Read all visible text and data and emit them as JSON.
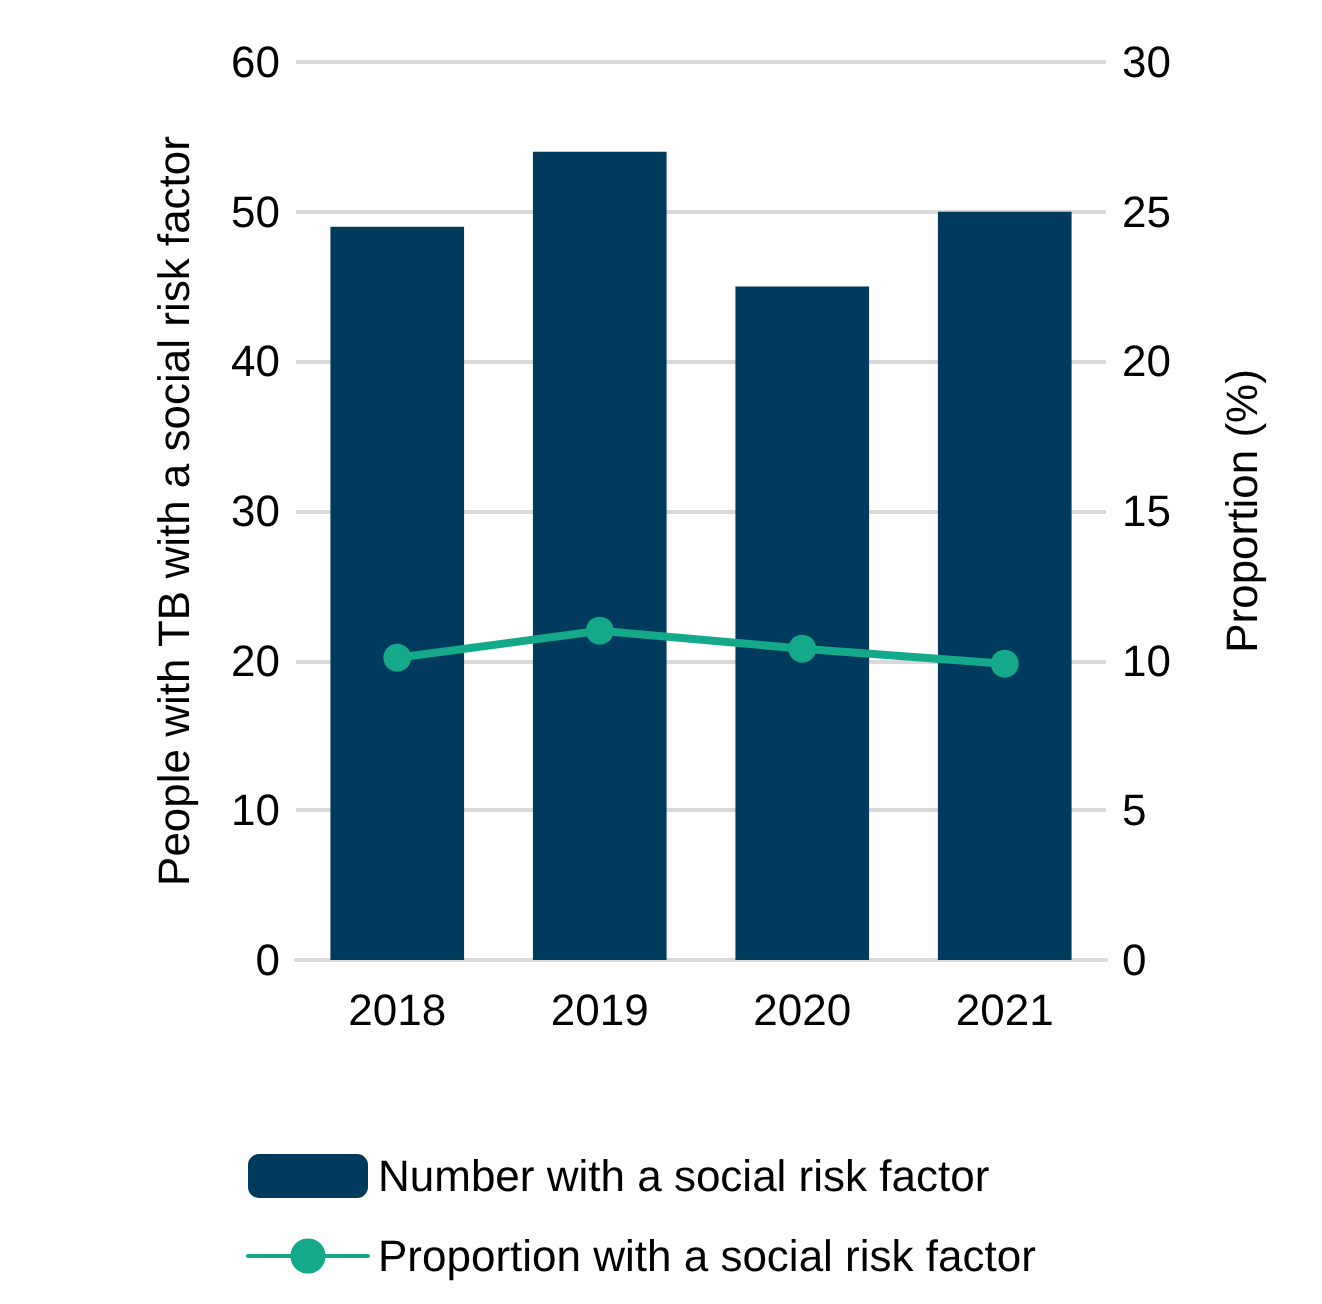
{
  "chart_data": {
    "type": "bar",
    "ylabel": "People with TB with a social risk factor",
    "y2label": "Proportion (%)",
    "categories": [
      "2018",
      "2019",
      "2020",
      "2021"
    ],
    "series": [
      {
        "name": "Number with a social risk factor",
        "color": "#003a5c",
        "values": [
          49,
          54,
          45,
          50
        ]
      },
      {
        "name": "Proportion with a social risk factor",
        "type": "line",
        "axis": "y2",
        "color": "#14a98b",
        "values": [
          10.1,
          11.0,
          10.4,
          9.9
        ]
      }
    ],
    "ylim": [
      0,
      60
    ],
    "yticks": [
      0,
      10,
      20,
      30,
      40,
      50,
      60
    ],
    "y2lim": [
      0,
      30
    ],
    "y2ticks": [
      0,
      5,
      10,
      15,
      20,
      25,
      30
    ],
    "grid": "y",
    "legend": "bottom",
    "marker": "circle"
  }
}
